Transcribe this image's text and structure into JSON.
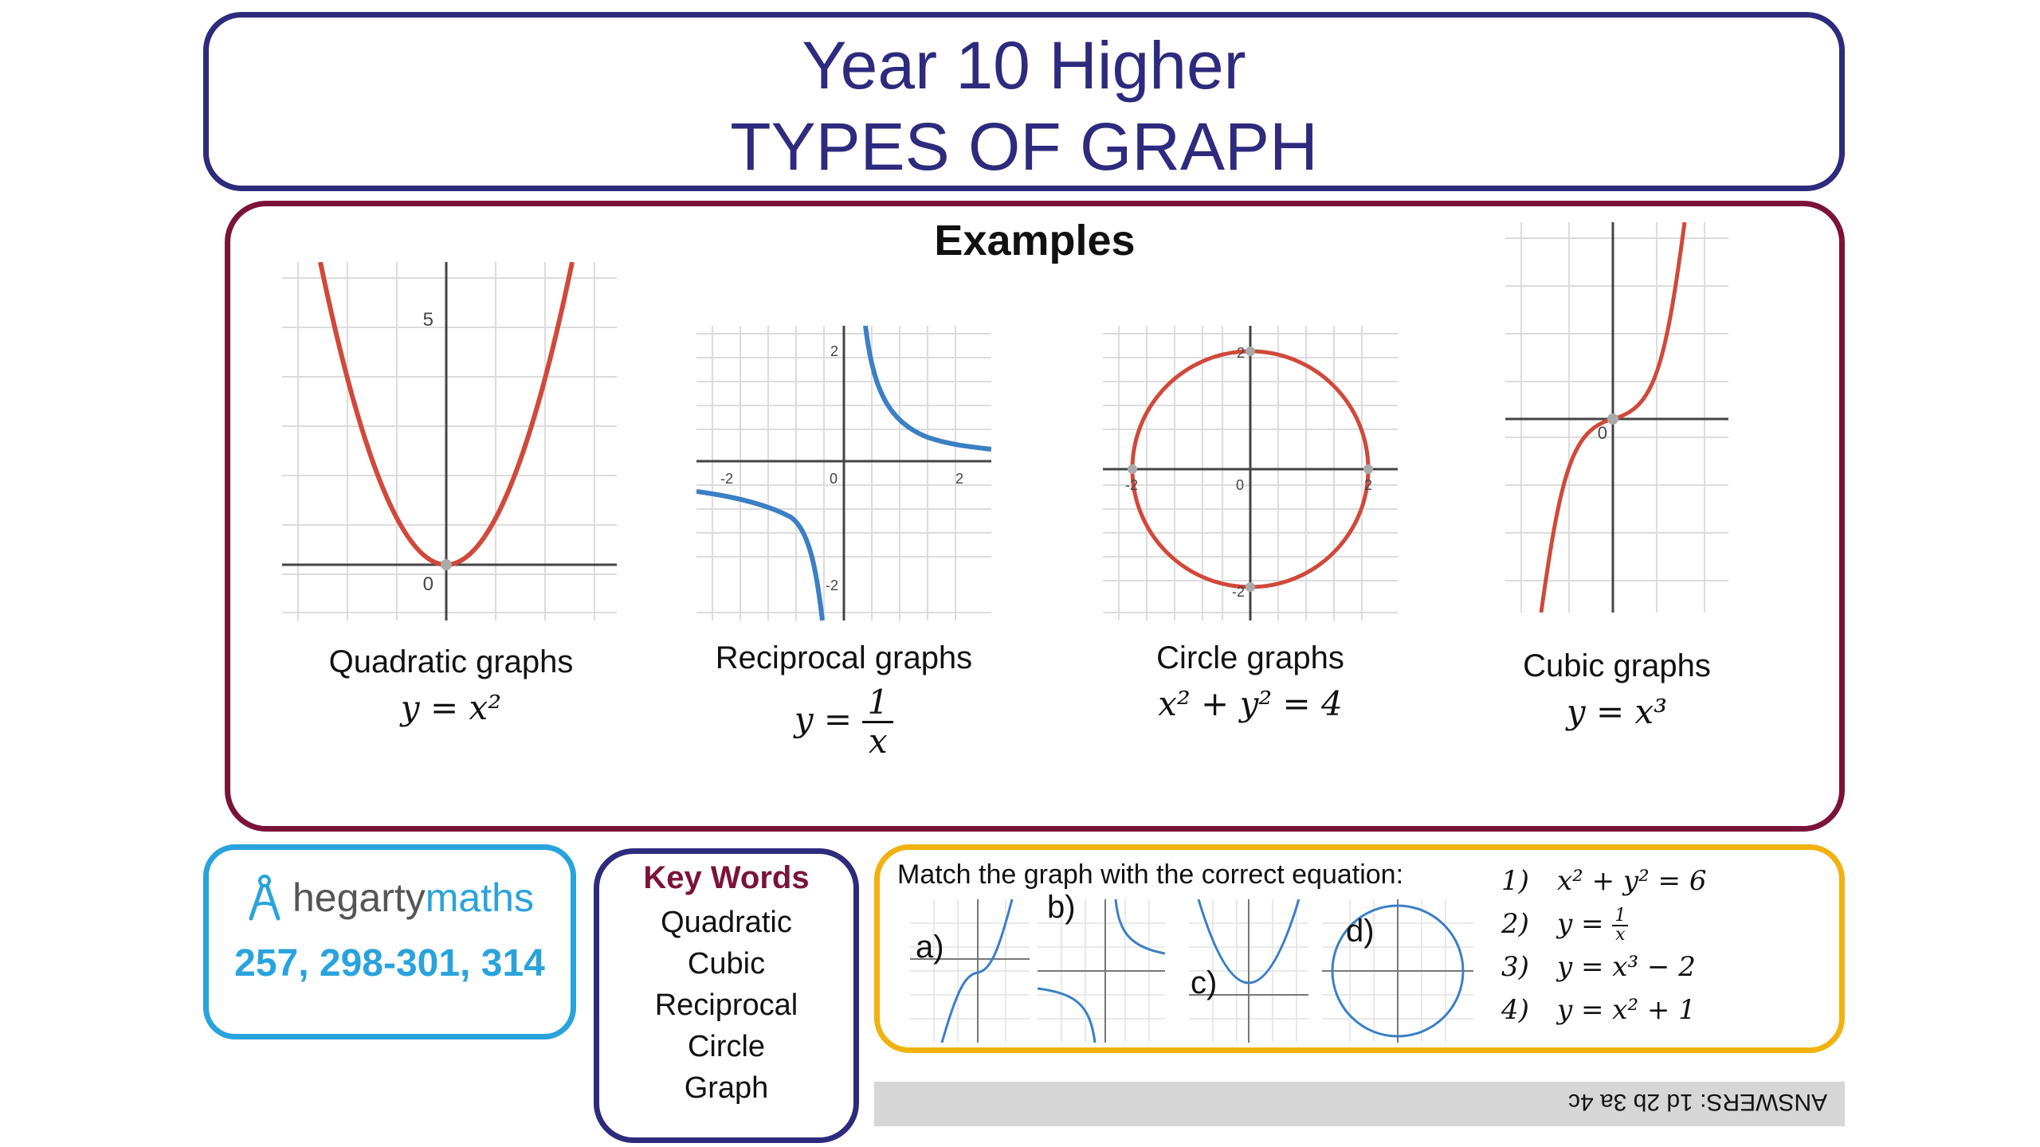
{
  "header": {
    "line1": "Year 10 Higher",
    "line2": "TYPES OF GRAPH"
  },
  "examples": {
    "heading": "Examples",
    "graphs": [
      {
        "label": "Quadratic graphs",
        "equation": "y = x²",
        "ticks": [
          "5",
          "0"
        ]
      },
      {
        "label": "Reciprocal graphs",
        "equation_lhs": "y =",
        "frac_num": "1",
        "frac_den": "x",
        "ticks": [
          "2",
          "-2",
          "0",
          "2",
          "-2"
        ]
      },
      {
        "label": "Circle graphs",
        "equation": "x² + y² = 4",
        "ticks": [
          "2",
          "-2",
          "0",
          "2",
          "-2"
        ]
      },
      {
        "label": "Cubic graphs",
        "equation": "y = x³",
        "ticks": [
          "0"
        ]
      }
    ]
  },
  "hegarty": {
    "brand_part1": "hegarty",
    "brand_part2": "maths",
    "tasks": "257, 298-301, 314"
  },
  "key_words": {
    "title": "Key Words",
    "items": [
      "Quadratic",
      "Cubic",
      "Reciprocal",
      "Circle",
      "Graph"
    ]
  },
  "match": {
    "prompt": "Match the graph with the correct equation:",
    "graph_labels": [
      "a)",
      "b)",
      "c)",
      "d)"
    ],
    "equations": [
      {
        "num": "1)",
        "text": "x² + y² = 6"
      },
      {
        "num": "2)",
        "lhs": "y =",
        "frac_num": "1",
        "frac_den": "x"
      },
      {
        "num": "3)",
        "text": "y = x³ − 2"
      },
      {
        "num": "4)",
        "text": "y = x² + 1"
      }
    ]
  },
  "answers": {
    "text": "ANSWERS:  1d   2b   3a   4c"
  },
  "colors": {
    "title": "#2e2a7e",
    "examples_border": "#7b1339",
    "hegarty_blue": "#29a3dc",
    "match_border": "#f1b20f",
    "curve_red": "#d0493b",
    "curve_blue": "#3b7fc4"
  }
}
